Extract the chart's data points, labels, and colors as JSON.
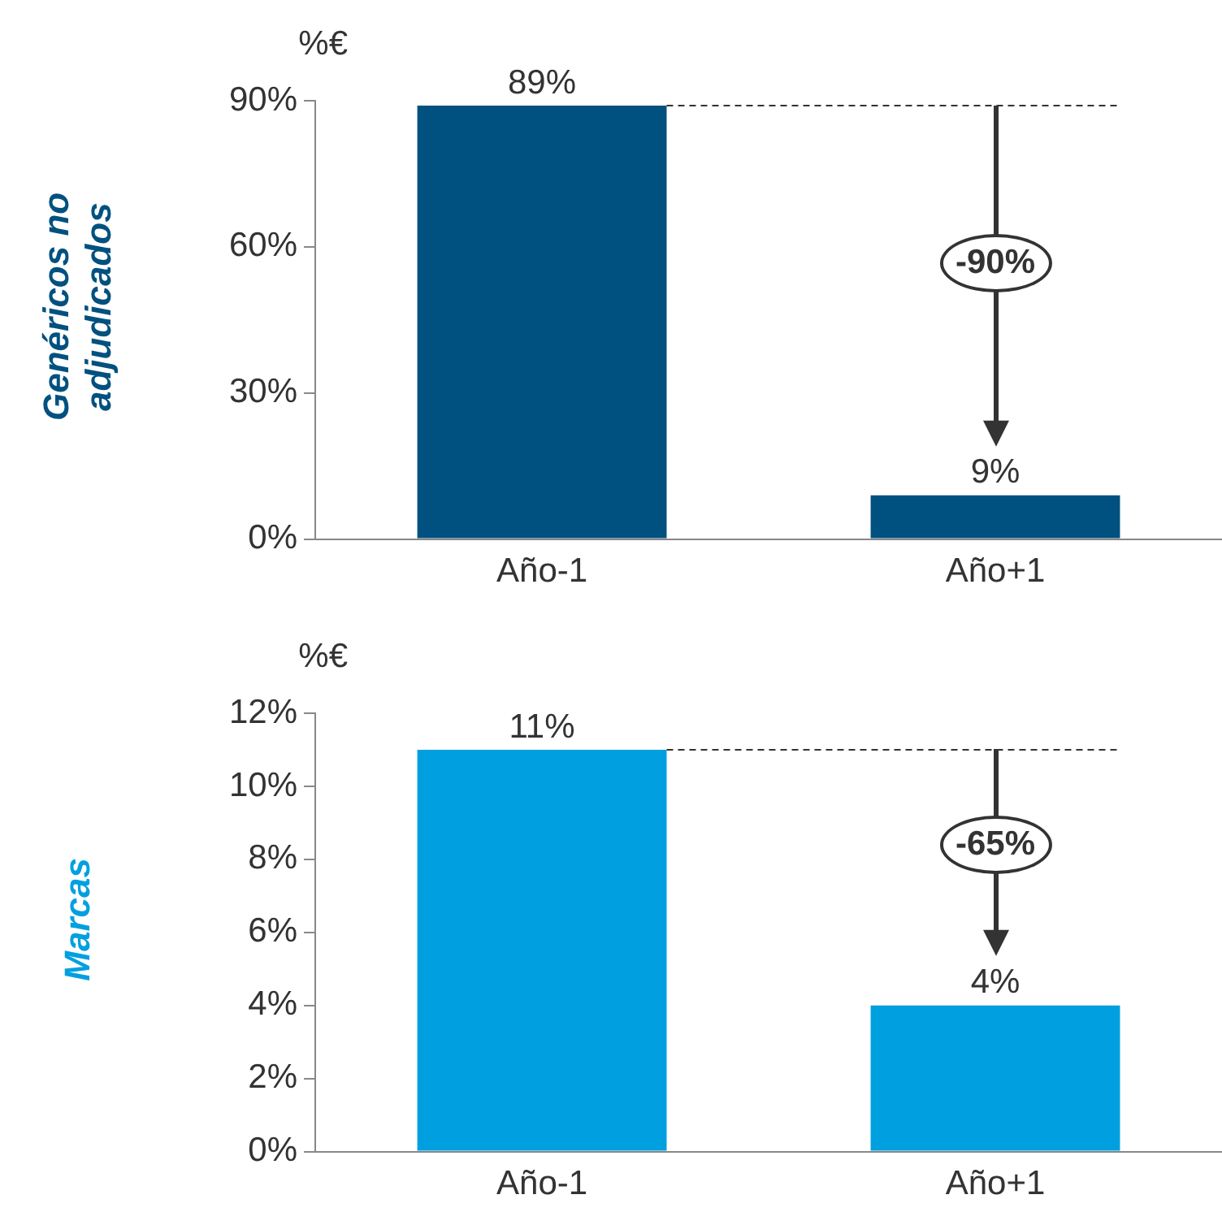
{
  "chart_data": [
    {
      "type": "bar",
      "title": "%€",
      "ylabel": "Genéricos no adjudicados",
      "categories": [
        "Año-1",
        "Año+1"
      ],
      "series": [
        {
          "color": "#00517f",
          "values": [
            89,
            9
          ],
          "value_labels": [
            "89%",
            "9%"
          ]
        }
      ],
      "ylim": [
        0,
        90
      ],
      "yticks": [
        {
          "value": 0,
          "label": "0%"
        },
        {
          "value": 30,
          "label": "30%"
        },
        {
          "value": 60,
          "label": "60%"
        },
        {
          "value": 90,
          "label": "90%"
        }
      ],
      "grid": false,
      "legend": false,
      "ref_lines": [
        {
          "axis": "y",
          "value": 89,
          "line_style": "dashed",
          "color": "#333333"
        }
      ],
      "annotations": [
        "-90%"
      ]
    },
    {
      "type": "bar",
      "title": "%€",
      "ylabel": "Marcas",
      "categories": [
        "Año-1",
        "Año+1"
      ],
      "series": [
        {
          "color": "#00a0e0",
          "values": [
            11,
            4
          ],
          "value_labels": [
            "11%",
            "4%"
          ]
        }
      ],
      "ylim": [
        0,
        12
      ],
      "yticks": [
        {
          "value": 0,
          "label": "0%"
        },
        {
          "value": 2,
          "label": "2%"
        },
        {
          "value": 4,
          "label": "4%"
        },
        {
          "value": 6,
          "label": "6%"
        },
        {
          "value": 8,
          "label": "8%"
        },
        {
          "value": 10,
          "label": "10%"
        },
        {
          "value": 12,
          "label": "12%"
        }
      ],
      "grid": false,
      "legend": false,
      "ref_lines": [
        {
          "axis": "y",
          "value": 11,
          "line_style": "dashed",
          "color": "#333333"
        }
      ],
      "annotations": [
        "-65%"
      ]
    }
  ]
}
